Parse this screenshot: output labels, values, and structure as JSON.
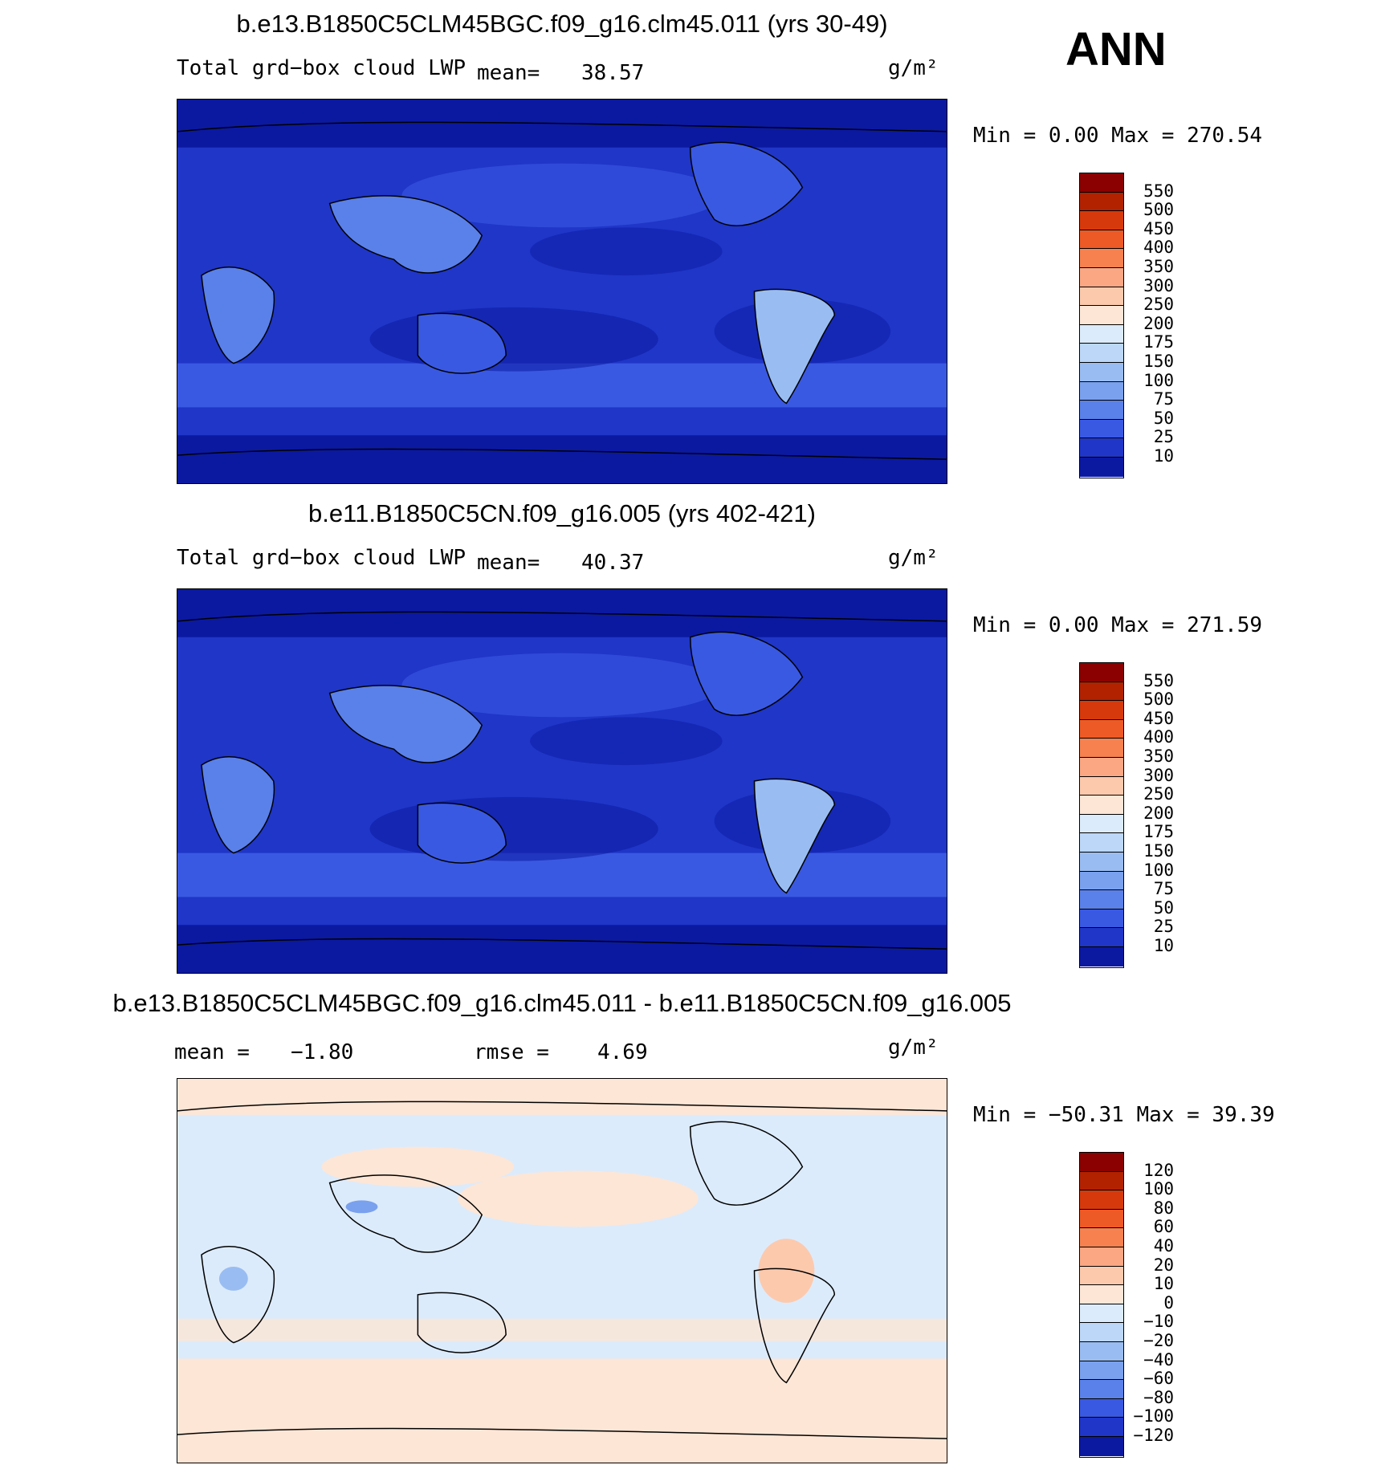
{
  "season": "ANN",
  "units_label": "g/m²",
  "panels": [
    {
      "title": "b.e13.B1850C5CLM45BGC.f09_g16.clm45.011 (yrs 30-49)",
      "variable": "Total grd−box cloud LWP",
      "stat1_label": "mean=",
      "stat1_value": "38.57",
      "stat2_label": "",
      "stat2_value": "",
      "units": "g/m²",
      "minmax": "Min =    0.00 Max = 270.54"
    },
    {
      "title": "b.e11.B1850C5CN.f09_g16.005 (yrs 402-421)",
      "variable": "Total grd−box cloud LWP",
      "stat1_label": "mean=",
      "stat1_value": "40.37",
      "stat2_label": "",
      "stat2_value": "",
      "units": "g/m²",
      "minmax": "Min =    0.00 Max = 271.59"
    },
    {
      "title": "b.e13.B1850C5CLM45BGC.f09_g16.clm45.011 - b.e11.B1850C5CN.f09_g16.005",
      "variable": "",
      "stat1_label": "mean =",
      "stat1_value": "−1.80",
      "stat2_label": "rmse =",
      "stat2_value": "4.69",
      "units": "g/m²",
      "minmax": "Min = −50.31 Max =   39.39"
    }
  ],
  "chart_data": [
    {
      "type": "heatmap",
      "title": "b.e13.B1850C5CLM45BGC.f09_g16.clm45.011 (yrs 30-49)",
      "variable": "Total grd−box cloud LWP",
      "units": "g/m²",
      "mean": 38.57,
      "min": 0.0,
      "max": 270.54,
      "colorbar_levels": [
        "550",
        "500",
        "450",
        "400",
        "350",
        "300",
        "250",
        "200",
        "175",
        "150",
        "100",
        "75",
        "50",
        "25",
        "10"
      ],
      "colorbar_colors": [
        "#8b0000",
        "#b22200",
        "#d63a0c",
        "#ee5a26",
        "#f7814f",
        "#fba784",
        "#fcc9ad",
        "#fde6d6",
        "#dcebfb",
        "#bcd7f8",
        "#99bdf2",
        "#7aa1ee",
        "#5a80ea",
        "#3a59e2",
        "#1f36c8",
        "#0b19a1"
      ]
    },
    {
      "type": "heatmap",
      "title": "b.e11.B1850C5CN.f09_g16.005 (yrs 402-421)",
      "variable": "Total grd−box cloud LWP",
      "units": "g/m²",
      "mean": 40.37,
      "min": 0.0,
      "max": 271.59,
      "colorbar_levels": [
        "550",
        "500",
        "450",
        "400",
        "350",
        "300",
        "250",
        "200",
        "175",
        "150",
        "100",
        "75",
        "50",
        "25",
        "10"
      ],
      "colorbar_colors": [
        "#8b0000",
        "#b22200",
        "#d63a0c",
        "#ee5a26",
        "#f7814f",
        "#fba784",
        "#fcc9ad",
        "#fde6d6",
        "#dcebfb",
        "#bcd7f8",
        "#99bdf2",
        "#7aa1ee",
        "#5a80ea",
        "#3a59e2",
        "#1f36c8",
        "#0b19a1"
      ]
    },
    {
      "type": "heatmap",
      "title": "b.e13.B1850C5CLM45BGC.f09_g16.clm45.011 - b.e11.B1850C5CN.f09_g16.005",
      "units": "g/m²",
      "mean": -1.8,
      "rmse": 4.69,
      "min": -50.31,
      "max": 39.39,
      "colorbar_levels": [
        "120",
        "100",
        "80",
        "60",
        "40",
        "20",
        "10",
        "0",
        "−10",
        "−20",
        "−40",
        "−60",
        "−80",
        "−100",
        "−120"
      ],
      "colorbar_colors": [
        "#8b0000",
        "#b22200",
        "#d63a0c",
        "#ee5a26",
        "#f7814f",
        "#fba784",
        "#fcc9ad",
        "#fde6d6",
        "#dcebfb",
        "#bcd7f8",
        "#99bdf2",
        "#7aa1ee",
        "#5a80ea",
        "#3a59e2",
        "#1f36c8",
        "#0b19a1"
      ]
    }
  ]
}
